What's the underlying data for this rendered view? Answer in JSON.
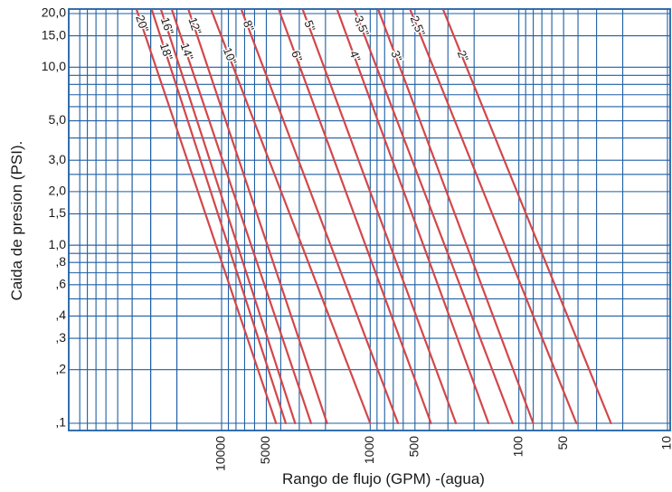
{
  "chart_data": {
    "type": "line",
    "title": "",
    "xlabel": "Rango de flujo (GPM) -(agua)",
    "ylabel": "Caida de presion (PSI).",
    "x_scale": "log",
    "x_reversed": true,
    "y_scale": "log",
    "xlim": [
      40000,
      10
    ],
    "ylim": [
      0.09,
      22
    ],
    "grid": true,
    "x_ticks": [
      {
        "value": 10000,
        "label": "10000"
      },
      {
        "value": 5000,
        "label": "5000"
      },
      {
        "value": 1000,
        "label": "1000"
      },
      {
        "value": 500,
        "label": "500"
      },
      {
        "value": 100,
        "label": "100"
      },
      {
        "value": 50,
        "label": "50"
      },
      {
        "value": 10,
        "label": "10"
      }
    ],
    "y_ticks": [
      {
        "value": 20,
        "label": "20,0"
      },
      {
        "value": 15,
        "label": "15,0"
      },
      {
        "value": 10,
        "label": "10,0"
      },
      {
        "value": 5,
        "label": "5,0"
      },
      {
        "value": 3,
        "label": "3,0"
      },
      {
        "value": 2,
        "label": "2,0"
      },
      {
        "value": 1.5,
        "label": "1,5"
      },
      {
        "value": 1,
        "label": "1,0"
      },
      {
        "value": 0.8,
        "label": ",8"
      },
      {
        "value": 0.6,
        "label": ",6"
      },
      {
        "value": 0.4,
        "label": ",4"
      },
      {
        "value": 0.3,
        "label": ",3"
      },
      {
        "value": 0.2,
        "label": ",2"
      },
      {
        "value": 0.1,
        "label": ",1"
      }
    ],
    "series": [
      {
        "name": "20\"",
        "points": [
          [
            38000,
            22
          ],
          [
            4300,
            0.1
          ]
        ]
      },
      {
        "name": "18\"",
        "points": [
          [
            30000,
            22
          ],
          [
            3700,
            0.1
          ]
        ]
      },
      {
        "name": "16\"",
        "points": [
          [
            26000,
            22
          ],
          [
            3200,
            0.1
          ]
        ]
      },
      {
        "name": "14\"",
        "points": [
          [
            22000,
            22
          ],
          [
            2500,
            0.1
          ]
        ]
      },
      {
        "name": "12\"",
        "points": [
          [
            17000,
            22
          ],
          [
            1950,
            0.1
          ]
        ]
      },
      {
        "name": "10\"",
        "points": [
          [
            12000,
            22
          ],
          [
            1000,
            0.1
          ]
        ]
      },
      {
        "name": "8\"",
        "points": [
          [
            7500,
            22
          ],
          [
            650,
            0.1
          ]
        ]
      },
      {
        "name": "6\"",
        "points": [
          [
            4200,
            22
          ],
          [
            390,
            0.1
          ]
        ]
      },
      {
        "name": "5\"",
        "points": [
          [
            2900,
            22
          ],
          [
            265,
            0.1
          ]
        ]
      },
      {
        "name": "4\"",
        "points": [
          [
            1700,
            22
          ],
          [
            160,
            0.1
          ]
        ]
      },
      {
        "name": "3,5\"",
        "points": [
          [
            1300,
            22
          ],
          [
            110,
            0.1
          ]
        ]
      },
      {
        "name": "3\"",
        "points": [
          [
            900,
            22
          ],
          [
            80,
            0.1
          ]
        ]
      },
      {
        "name": "2,5\"",
        "points": [
          [
            550,
            22
          ],
          [
            41,
            0.1
          ]
        ]
      },
      {
        "name": "2\"",
        "points": [
          [
            330,
            22
          ],
          [
            24,
            0.1
          ]
        ]
      }
    ]
  },
  "colors": {
    "grid": "#1f5fa3",
    "curve": "#d2474a",
    "background": "#ffffff"
  }
}
